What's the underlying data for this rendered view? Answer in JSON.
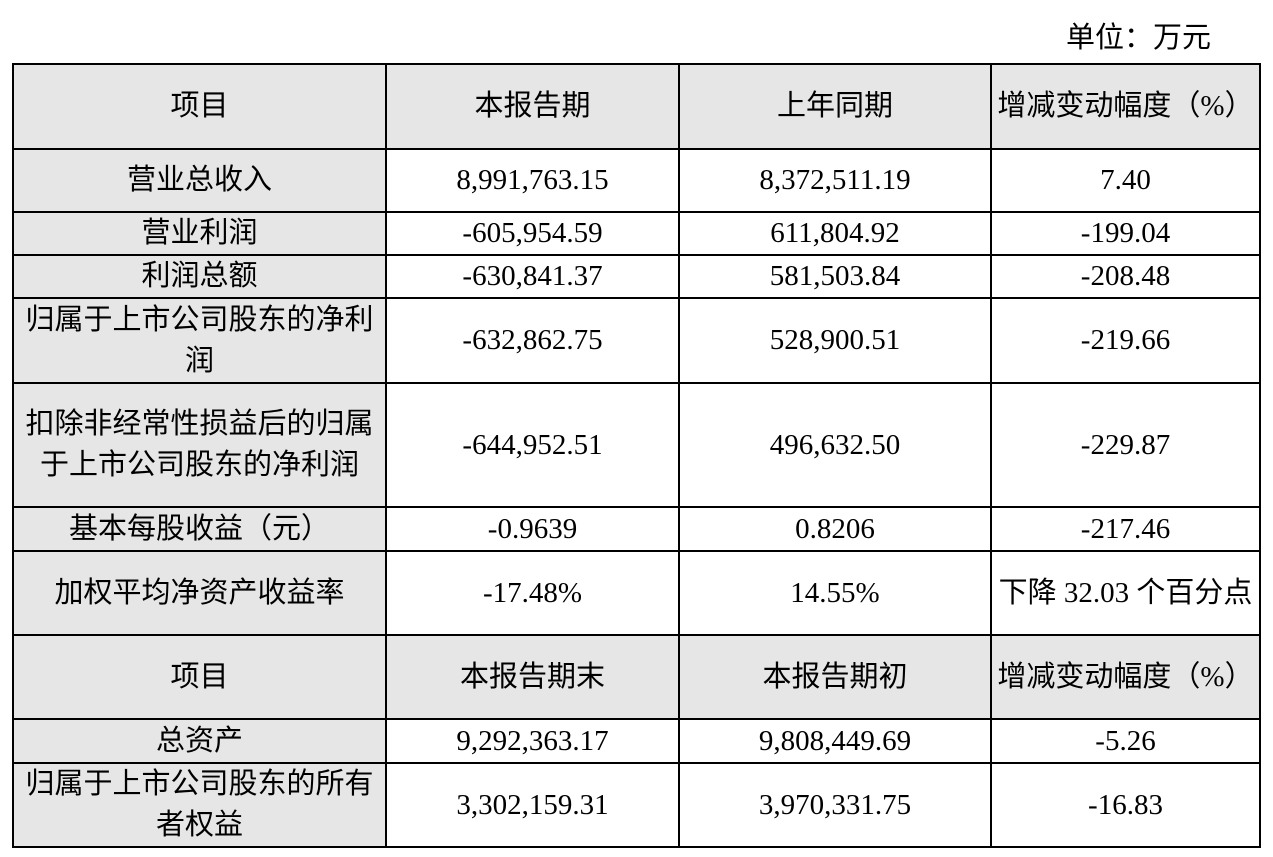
{
  "unit_label": "单位：万元",
  "header1": [
    "项目",
    "本报告期",
    "上年同期",
    "增减变动幅度（%）"
  ],
  "rows1": [
    {
      "item": "营业总收入",
      "current": "8,991,763.15",
      "prior": "8,372,511.19",
      "change": "7.40"
    },
    {
      "item": "营业利润",
      "current": "-605,954.59",
      "prior": "611,804.92",
      "change": "-199.04"
    },
    {
      "item": "利润总额",
      "current": "-630,841.37",
      "prior": "581,503.84",
      "change": "-208.48"
    },
    {
      "item": "归属于上市公司股东的净利润",
      "current": "-632,862.75",
      "prior": "528,900.51",
      "change": "-219.66"
    },
    {
      "item": "扣除非经常性损益后的归属于上市公司股东的净利润",
      "current": "-644,952.51",
      "prior": "496,632.50",
      "change": "-229.87"
    },
    {
      "item": "基本每股收益（元）",
      "current": "-0.9639",
      "prior": "0.8206",
      "change": "-217.46"
    },
    {
      "item": "加权平均净资产收益率",
      "current": "-17.48%",
      "prior": "14.55%",
      "change": "下降 32.03 个百分点"
    }
  ],
  "header2": [
    "项目",
    "本报告期末",
    "本报告期初",
    "增减变动幅度（%）"
  ],
  "rows2": [
    {
      "item": "总资产",
      "current": "9,292,363.17",
      "prior": "9,808,449.69",
      "change": "-5.26"
    },
    {
      "item": "归属于上市公司股东的所有者权益",
      "current": "3,302,159.31",
      "prior": "3,970,331.75",
      "change": "-16.83"
    }
  ]
}
